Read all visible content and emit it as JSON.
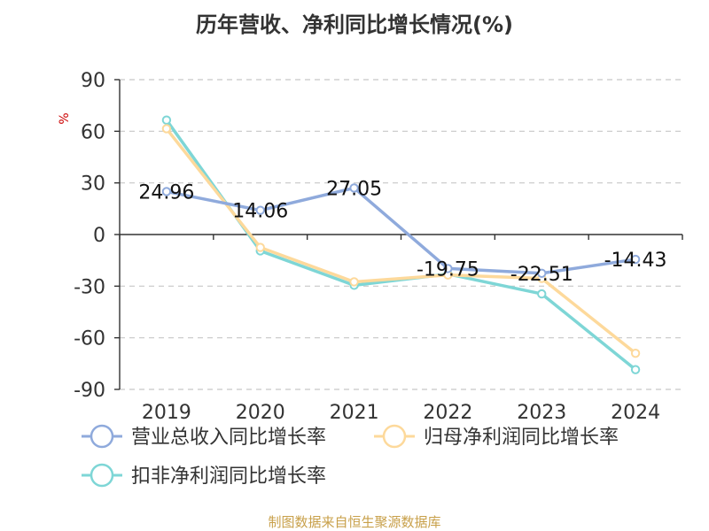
{
  "chart_data": {
    "type": "line",
    "title": "历年营收、净利同比增长情况(%)",
    "ylabel": "%",
    "xlabel": "",
    "categories": [
      "2019",
      "2020",
      "2021",
      "2022",
      "2023",
      "2024"
    ],
    "ylim": [
      -90,
      90
    ],
    "yticks": [
      90,
      60,
      30,
      0,
      -30,
      -60,
      -90
    ],
    "grid": true,
    "legend_position": "bottom-left",
    "series": [
      {
        "name": "营业总收入同比增长率",
        "color": "#8faadc",
        "values": [
          24.96,
          14.06,
          27.05,
          -19.75,
          -22.51,
          -14.43
        ],
        "labels": [
          "24.96",
          "14.06",
          "27.05",
          "-19.75",
          "-22.51",
          "-14.43"
        ]
      },
      {
        "name": "归母净利润同比增长率",
        "color": "#fdd99b",
        "values": [
          61.5,
          -7.5,
          -27.5,
          -23.5,
          -25.5,
          -69.0
        ]
      },
      {
        "name": "扣非净利润同比增长率",
        "color": "#7ed6d6",
        "values": [
          66.5,
          -9.5,
          -29.5,
          -23.0,
          -34.5,
          -78.5
        ]
      }
    ]
  },
  "footer": {
    "source": "制图数据来自恒生聚源数据库"
  }
}
